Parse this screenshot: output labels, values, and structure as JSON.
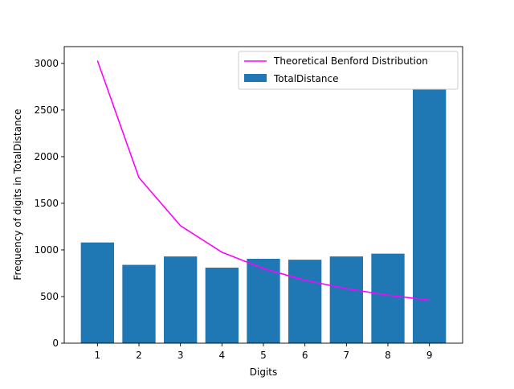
{
  "chart_data": {
    "type": "bar",
    "title": "",
    "xlabel": "Digits",
    "ylabel": "Frequency of digits in TotalDistance",
    "categories": [
      "1",
      "2",
      "3",
      "4",
      "5",
      "6",
      "7",
      "8",
      "9"
    ],
    "ylim": [
      0,
      3180
    ],
    "yticks": [
      0,
      500,
      1000,
      1500,
      2000,
      2500,
      3000
    ],
    "ytick_labels": [
      "0",
      "500",
      "1000",
      "1500",
      "2000",
      "2500",
      "3000"
    ],
    "grid": false,
    "legend_position": "top-right",
    "series": [
      {
        "name": "TotalDistance",
        "kind": "bar",
        "color": "#1f77b4",
        "values": [
          1080,
          840,
          930,
          810,
          905,
          895,
          930,
          960,
          2720
        ]
      },
      {
        "name": "Theoretical Benford Distribution",
        "kind": "line",
        "color": "#ff00ff",
        "values": [
          3030,
          1775,
          1260,
          975,
          800,
          675,
          585,
          515,
          462
        ]
      }
    ]
  }
}
